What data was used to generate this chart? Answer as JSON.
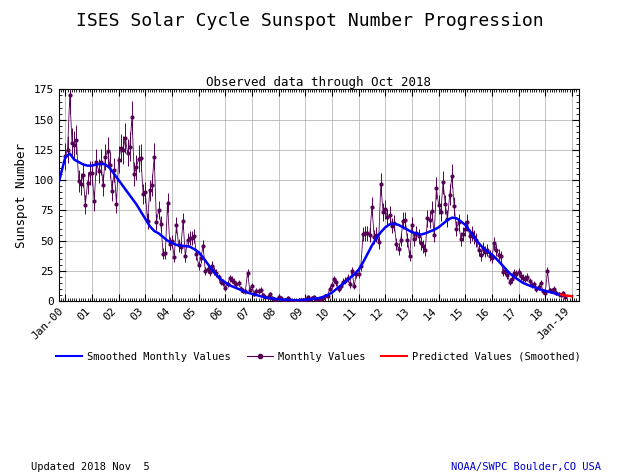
{
  "title": "ISES Solar Cycle Sunspot Number Progression",
  "subtitle": "Observed data through Oct 2018",
  "ylabel": "Sunspot Number",
  "footer_left": "Updated 2018 Nov  5",
  "footer_right": "NOAA/SWPC Boulder,CO USA",
  "ylim": [
    0,
    175
  ],
  "background_color": "#ffffff",
  "grid_color": "#aaaaaa",
  "smoothed_color": "#0000ff",
  "monthly_color": "#550055",
  "predicted_color": "#ff0000",
  "title_fontsize": 13,
  "subtitle_fontsize": 9,
  "label_fontsize": 9,
  "tick_fontsize": 8,
  "monthly_values": [
    [
      2000.0,
      119.6
    ],
    [
      2000.083,
      125.3
    ],
    [
      2000.167,
      170.1
    ],
    [
      2000.25,
      131.0
    ],
    [
      2000.333,
      128.9
    ],
    [
      2000.417,
      133.5
    ],
    [
      2000.5,
      99.3
    ],
    [
      2000.583,
      96.6
    ],
    [
      2000.667,
      104.0
    ],
    [
      2000.75,
      79.6
    ],
    [
      2000.833,
      97.6
    ],
    [
      2000.917,
      106.0
    ],
    [
      2001.0,
      106.0
    ],
    [
      2001.083,
      82.6
    ],
    [
      2001.167,
      115.2
    ],
    [
      2001.25,
      107.4
    ],
    [
      2001.333,
      114.9
    ],
    [
      2001.417,
      96.2
    ],
    [
      2001.5,
      119.2
    ],
    [
      2001.583,
      123.9
    ],
    [
      2001.667,
      112.6
    ],
    [
      2001.75,
      91.4
    ],
    [
      2001.833,
      108.5
    ],
    [
      2001.917,
      80.5
    ],
    [
      2002.0,
      117.0
    ],
    [
      2002.083,
      126.3
    ],
    [
      2002.167,
      125.1
    ],
    [
      2002.25,
      135.0
    ],
    [
      2002.333,
      122.8
    ],
    [
      2002.417,
      127.8
    ],
    [
      2002.5,
      152.0
    ],
    [
      2002.583,
      104.9
    ],
    [
      2002.667,
      110.8
    ],
    [
      2002.75,
      117.8
    ],
    [
      2002.833,
      118.5
    ],
    [
      2002.917,
      88.5
    ],
    [
      2003.0,
      90.0
    ],
    [
      2003.083,
      66.0
    ],
    [
      2003.167,
      91.7
    ],
    [
      2003.25,
      96.0
    ],
    [
      2003.333,
      119.5
    ],
    [
      2003.417,
      65.6
    ],
    [
      2003.5,
      75.5
    ],
    [
      2003.583,
      64.0
    ],
    [
      2003.667,
      39.1
    ],
    [
      2003.75,
      39.6
    ],
    [
      2003.833,
      81.3
    ],
    [
      2003.917,
      47.5
    ],
    [
      2004.0,
      49.4
    ],
    [
      2004.083,
      36.5
    ],
    [
      2004.167,
      63.1
    ],
    [
      2004.25,
      46.0
    ],
    [
      2004.333,
      45.0
    ],
    [
      2004.417,
      66.4
    ],
    [
      2004.5,
      36.9
    ],
    [
      2004.583,
      50.8
    ],
    [
      2004.667,
      52.1
    ],
    [
      2004.75,
      51.9
    ],
    [
      2004.833,
      53.8
    ],
    [
      2004.917,
      38.6
    ],
    [
      2005.0,
      29.5
    ],
    [
      2005.083,
      35.8
    ],
    [
      2005.167,
      45.7
    ],
    [
      2005.25,
      25.0
    ],
    [
      2005.333,
      26.7
    ],
    [
      2005.417,
      24.3
    ],
    [
      2005.5,
      29.3
    ],
    [
      2005.583,
      24.8
    ],
    [
      2005.667,
      23.4
    ],
    [
      2005.75,
      19.6
    ],
    [
      2005.833,
      15.7
    ],
    [
      2005.917,
      15.2
    ],
    [
      2006.0,
      11.1
    ],
    [
      2006.083,
      14.0
    ],
    [
      2006.167,
      18.8
    ],
    [
      2006.25,
      17.5
    ],
    [
      2006.333,
      16.0
    ],
    [
      2006.417,
      14.0
    ],
    [
      2006.5,
      15.0
    ],
    [
      2006.583,
      10.2
    ],
    [
      2006.667,
      8.6
    ],
    [
      2006.75,
      8.0
    ],
    [
      2006.833,
      23.5
    ],
    [
      2006.917,
      9.5
    ],
    [
      2007.0,
      12.3
    ],
    [
      2007.083,
      6.0
    ],
    [
      2007.167,
      8.3
    ],
    [
      2007.25,
      8.4
    ],
    [
      2007.333,
      9.4
    ],
    [
      2007.417,
      4.9
    ],
    [
      2007.5,
      3.0
    ],
    [
      2007.583,
      3.4
    ],
    [
      2007.667,
      5.5
    ],
    [
      2007.75,
      2.8
    ],
    [
      2007.833,
      1.7
    ],
    [
      2007.917,
      0.4
    ],
    [
      2008.0,
      3.8
    ],
    [
      2008.083,
      2.5
    ],
    [
      2008.167,
      0.5
    ],
    [
      2008.25,
      0.8
    ],
    [
      2008.333,
      2.7
    ],
    [
      2008.417,
      1.1
    ],
    [
      2008.5,
      0.5
    ],
    [
      2008.583,
      0.1
    ],
    [
      2008.667,
      0.0
    ],
    [
      2008.75,
      1.0
    ],
    [
      2008.833,
      0.7
    ],
    [
      2008.917,
      0.8
    ],
    [
      2009.0,
      1.2
    ],
    [
      2009.083,
      3.0
    ],
    [
      2009.167,
      0.7
    ],
    [
      2009.25,
      2.6
    ],
    [
      2009.333,
      3.5
    ],
    [
      2009.417,
      1.1
    ],
    [
      2009.5,
      1.6
    ],
    [
      2009.583,
      0.5
    ],
    [
      2009.667,
      2.2
    ],
    [
      2009.75,
      4.2
    ],
    [
      2009.833,
      4.4
    ],
    [
      2009.917,
      10.3
    ],
    [
      2010.0,
      13.5
    ],
    [
      2010.083,
      18.1
    ],
    [
      2010.167,
      15.4
    ],
    [
      2010.25,
      10.0
    ],
    [
      2010.333,
      12.1
    ],
    [
      2010.417,
      16.0
    ],
    [
      2010.5,
      17.0
    ],
    [
      2010.583,
      19.2
    ],
    [
      2010.667,
      13.8
    ],
    [
      2010.75,
      24.7
    ],
    [
      2010.833,
      12.5
    ],
    [
      2010.917,
      22.8
    ],
    [
      2011.0,
      22.4
    ],
    [
      2011.083,
      28.7
    ],
    [
      2011.167,
      55.7
    ],
    [
      2011.25,
      56.0
    ],
    [
      2011.333,
      56.0
    ],
    [
      2011.417,
      55.0
    ],
    [
      2011.5,
      78.0
    ],
    [
      2011.583,
      53.2
    ],
    [
      2011.667,
      55.0
    ],
    [
      2011.75,
      48.8
    ],
    [
      2011.833,
      97.0
    ],
    [
      2011.917,
      73.4
    ],
    [
      2012.0,
      75.8
    ],
    [
      2012.083,
      69.2
    ],
    [
      2012.167,
      71.1
    ],
    [
      2012.25,
      62.5
    ],
    [
      2012.333,
      64.3
    ],
    [
      2012.417,
      47.2
    ],
    [
      2012.5,
      43.2
    ],
    [
      2012.583,
      50.8
    ],
    [
      2012.667,
      66.5
    ],
    [
      2012.75,
      67.1
    ],
    [
      2012.833,
      50.5
    ],
    [
      2012.917,
      37.5
    ],
    [
      2013.0,
      63.0
    ],
    [
      2013.083,
      51.0
    ],
    [
      2013.167,
      56.3
    ],
    [
      2013.25,
      53.6
    ],
    [
      2013.333,
      47.9
    ],
    [
      2013.417,
      45.3
    ],
    [
      2013.5,
      42.4
    ],
    [
      2013.583,
      68.4
    ],
    [
      2013.667,
      67.4
    ],
    [
      2013.75,
      74.9
    ],
    [
      2013.833,
      54.9
    ],
    [
      2013.917,
      93.3
    ],
    [
      2014.0,
      79.5
    ],
    [
      2014.083,
      73.5
    ],
    [
      2014.167,
      98.3
    ],
    [
      2014.25,
      80.0
    ],
    [
      2014.333,
      68.0
    ],
    [
      2014.417,
      88.0
    ],
    [
      2014.5,
      103.5
    ],
    [
      2014.583,
      78.5
    ],
    [
      2014.667,
      60.0
    ],
    [
      2014.75,
      65.0
    ],
    [
      2014.833,
      51.5
    ],
    [
      2014.917,
      55.5
    ],
    [
      2015.0,
      60.0
    ],
    [
      2015.083,
      65.0
    ],
    [
      2015.167,
      53.5
    ],
    [
      2015.25,
      56.0
    ],
    [
      2015.333,
      53.0
    ],
    [
      2015.417,
      50.5
    ],
    [
      2015.5,
      42.0
    ],
    [
      2015.583,
      38.0
    ],
    [
      2015.667,
      43.5
    ],
    [
      2015.75,
      41.0
    ],
    [
      2015.833,
      42.5
    ],
    [
      2015.917,
      37.5
    ],
    [
      2016.0,
      35.5
    ],
    [
      2016.083,
      48.0
    ],
    [
      2016.167,
      42.0
    ],
    [
      2016.25,
      38.5
    ],
    [
      2016.333,
      37.0
    ],
    [
      2016.417,
      24.0
    ],
    [
      2016.5,
      25.0
    ],
    [
      2016.583,
      21.5
    ],
    [
      2016.667,
      16.0
    ],
    [
      2016.75,
      18.0
    ],
    [
      2016.833,
      23.5
    ],
    [
      2016.917,
      22.5
    ],
    [
      2017.0,
      24.0
    ],
    [
      2017.083,
      21.0
    ],
    [
      2017.167,
      19.0
    ],
    [
      2017.25,
      18.5
    ],
    [
      2017.333,
      20.0
    ],
    [
      2017.417,
      16.5
    ],
    [
      2017.5,
      13.5
    ],
    [
      2017.583,
      14.0
    ],
    [
      2017.667,
      10.0
    ],
    [
      2017.75,
      12.0
    ],
    [
      2017.833,
      15.0
    ],
    [
      2017.917,
      8.0
    ],
    [
      2018.0,
      7.0
    ],
    [
      2018.083,
      25.0
    ],
    [
      2018.167,
      9.0
    ],
    [
      2018.25,
      8.5
    ],
    [
      2018.333,
      10.0
    ],
    [
      2018.417,
      7.0
    ],
    [
      2018.5,
      5.5
    ],
    [
      2018.583,
      5.0
    ],
    [
      2018.667,
      6.5
    ],
    [
      2018.75,
      3.5
    ]
  ],
  "smoothed_values": [
    [
      1999.5,
      80.0
    ],
    [
      1999.667,
      90.0
    ],
    [
      1999.833,
      105.0
    ],
    [
      2000.0,
      119.0
    ],
    [
      2000.167,
      122.0
    ],
    [
      2000.333,
      117.0
    ],
    [
      2000.5,
      115.0
    ],
    [
      2000.667,
      113.0
    ],
    [
      2000.833,
      112.0
    ],
    [
      2001.0,
      112.0
    ],
    [
      2001.167,
      113.0
    ],
    [
      2001.333,
      113.5
    ],
    [
      2001.5,
      113.0
    ],
    [
      2001.667,
      110.0
    ],
    [
      2001.833,
      105.0
    ],
    [
      2002.0,
      100.0
    ],
    [
      2002.167,
      95.0
    ],
    [
      2002.333,
      90.0
    ],
    [
      2002.5,
      85.0
    ],
    [
      2002.667,
      80.0
    ],
    [
      2002.833,
      74.0
    ],
    [
      2003.0,
      68.0
    ],
    [
      2003.167,
      62.0
    ],
    [
      2003.333,
      58.0
    ],
    [
      2003.5,
      56.0
    ],
    [
      2003.667,
      53.0
    ],
    [
      2003.833,
      50.0
    ],
    [
      2004.0,
      48.0
    ],
    [
      2004.167,
      46.5
    ],
    [
      2004.333,
      46.0
    ],
    [
      2004.5,
      45.5
    ],
    [
      2004.667,
      45.0
    ],
    [
      2004.833,
      43.0
    ],
    [
      2005.0,
      40.5
    ],
    [
      2005.167,
      36.0
    ],
    [
      2005.333,
      31.0
    ],
    [
      2005.5,
      26.0
    ],
    [
      2005.667,
      21.5
    ],
    [
      2005.833,
      18.0
    ],
    [
      2006.0,
      15.5
    ],
    [
      2006.167,
      13.0
    ],
    [
      2006.333,
      11.5
    ],
    [
      2006.5,
      10.0
    ],
    [
      2006.667,
      8.5
    ],
    [
      2006.833,
      7.0
    ],
    [
      2007.0,
      6.0
    ],
    [
      2007.167,
      5.0
    ],
    [
      2007.333,
      4.0
    ],
    [
      2007.5,
      3.0
    ],
    [
      2007.667,
      2.5
    ],
    [
      2007.833,
      2.0
    ],
    [
      2008.0,
      1.5
    ],
    [
      2008.167,
      1.2
    ],
    [
      2008.333,
      1.0
    ],
    [
      2008.5,
      0.8
    ],
    [
      2008.667,
      0.6
    ],
    [
      2008.833,
      0.8
    ],
    [
      2009.0,
      1.2
    ],
    [
      2009.167,
      1.5
    ],
    [
      2009.333,
      2.0
    ],
    [
      2009.5,
      2.5
    ],
    [
      2009.667,
      3.5
    ],
    [
      2009.833,
      5.0
    ],
    [
      2010.0,
      7.0
    ],
    [
      2010.167,
      10.0
    ],
    [
      2010.333,
      13.0
    ],
    [
      2010.5,
      16.0
    ],
    [
      2010.667,
      19.0
    ],
    [
      2010.833,
      22.0
    ],
    [
      2011.0,
      26.0
    ],
    [
      2011.167,
      32.0
    ],
    [
      2011.333,
      39.0
    ],
    [
      2011.5,
      46.0
    ],
    [
      2011.667,
      52.0
    ],
    [
      2011.833,
      57.0
    ],
    [
      2012.0,
      61.0
    ],
    [
      2012.167,
      63.5
    ],
    [
      2012.333,
      64.0
    ],
    [
      2012.5,
      63.0
    ],
    [
      2012.667,
      61.0
    ],
    [
      2012.833,
      59.0
    ],
    [
      2013.0,
      57.0
    ],
    [
      2013.167,
      56.0
    ],
    [
      2013.333,
      55.0
    ],
    [
      2013.5,
      56.0
    ],
    [
      2013.667,
      57.5
    ],
    [
      2013.833,
      59.0
    ],
    [
      2014.0,
      61.0
    ],
    [
      2014.167,
      64.0
    ],
    [
      2014.333,
      67.0
    ],
    [
      2014.5,
      69.0
    ],
    [
      2014.667,
      68.5
    ],
    [
      2014.833,
      66.0
    ],
    [
      2015.0,
      63.0
    ],
    [
      2015.167,
      58.0
    ],
    [
      2015.333,
      53.0
    ],
    [
      2015.5,
      48.0
    ],
    [
      2015.667,
      44.0
    ],
    [
      2015.833,
      41.0
    ],
    [
      2016.0,
      38.5
    ],
    [
      2016.167,
      35.0
    ],
    [
      2016.333,
      31.0
    ],
    [
      2016.5,
      27.0
    ],
    [
      2016.667,
      23.0
    ],
    [
      2016.833,
      20.0
    ],
    [
      2017.0,
      17.5
    ],
    [
      2017.167,
      15.0
    ],
    [
      2017.333,
      13.5
    ],
    [
      2017.5,
      12.0
    ],
    [
      2017.667,
      11.0
    ],
    [
      2017.833,
      9.5
    ],
    [
      2018.0,
      8.5
    ],
    [
      2018.167,
      7.5
    ],
    [
      2018.333,
      6.5
    ],
    [
      2018.5,
      5.5
    ],
    [
      2018.667,
      5.0
    ]
  ],
  "predicted_values": [
    [
      2018.583,
      5.5
    ],
    [
      2018.667,
      5.0
    ],
    [
      2018.75,
      4.8
    ],
    [
      2018.833,
      4.5
    ],
    [
      2018.917,
      4.2
    ],
    [
      2019.0,
      4.0
    ]
  ],
  "legend_labels": [
    "Smoothed Monthly Values",
    "Monthly Values",
    "Predicted Values (Smoothed)"
  ],
  "xtick_positions": [
    2000.0,
    2001.0,
    2002.0,
    2003.0,
    2004.0,
    2005.0,
    2006.0,
    2007.0,
    2008.0,
    2009.0,
    2010.0,
    2011.0,
    2012.0,
    2013.0,
    2014.0,
    2015.0,
    2016.0,
    2017.0,
    2018.0,
    2019.0
  ],
  "xtick_labels": [
    "Jan-00",
    "01",
    "02",
    "03",
    "04",
    "05",
    "06",
    "07",
    "08",
    "09",
    "10",
    "11",
    "12",
    "13",
    "14",
    "15",
    "16",
    "17",
    "18",
    "Jan-19"
  ],
  "ytick_positions": [
    0,
    25,
    50,
    75,
    100,
    125,
    150,
    175
  ],
  "xlim": [
    1999.75,
    2019.25
  ]
}
